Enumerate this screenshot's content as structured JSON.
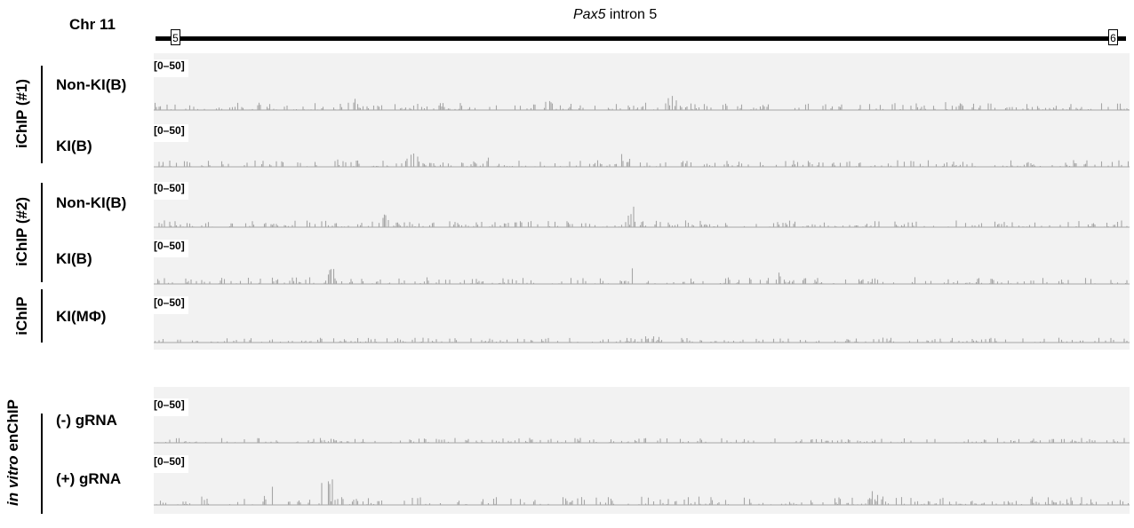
{
  "header": {
    "chr": "Chr 11",
    "gene_italic": "Pax5",
    "gene_rest": " intron 5",
    "exon_left": "5",
    "exon_right": "6"
  },
  "groups": [
    {
      "label": "iChIP (#1)",
      "italic": "",
      "rest": "iChIP (#1)"
    },
    {
      "label": "iChIP (#2)",
      "italic": "",
      "rest": "iChIP (#2)"
    },
    {
      "label": "iChIP",
      "italic": "",
      "rest": "iChIP"
    },
    {
      "label": "in vitro enChIP",
      "italic": "in vitro",
      "rest": " enChIP"
    }
  ],
  "tracks": [
    {
      "sample": "Non-KI(B)",
      "range": "[0–50]",
      "peak_level": 0.35
    },
    {
      "sample": "KI(B)",
      "range": "[0–50]",
      "peak_level": 0.3
    },
    {
      "sample": "Non-KI(B)",
      "range": "[0–50]",
      "peak_level": 0.3
    },
    {
      "sample": "KI(B)",
      "range": "[0–50]",
      "peak_level": 0.3
    },
    {
      "sample": "KI(MΦ)",
      "range": "[0–50]",
      "peak_level": 0.15
    },
    {
      "sample": "(-) gRNA",
      "range": "[0–50]",
      "peak_level": 0.15
    },
    {
      "sample": "(+) gRNA",
      "range": "[0–50]",
      "peak_level": 0.45
    }
  ],
  "colors": {
    "signal": "#a6a6a6",
    "panel": "#f2f2f2",
    "baseline": "#8c8c8c"
  }
}
